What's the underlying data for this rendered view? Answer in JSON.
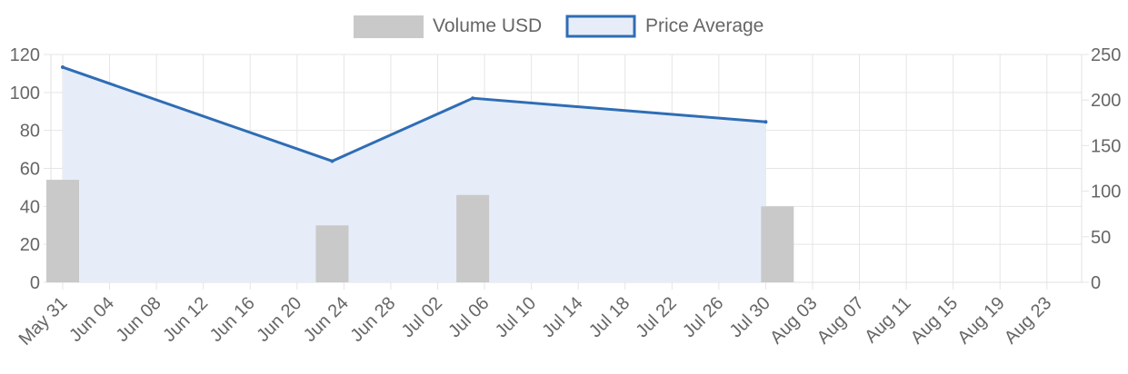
{
  "chart_data": {
    "type": "bar",
    "legend_position": "top-center",
    "grid": true,
    "x_tick_labels": [
      "May 31",
      "Jun 04",
      "Jun 08",
      "Jun 12",
      "Jun 16",
      "Jun 20",
      "Jun 24",
      "Jun 28",
      "Jul 02",
      "Jul 06",
      "Jul 10",
      "Jul 14",
      "Jul 18",
      "Jul 22",
      "Jul 26",
      "Jul 30",
      "Aug 03",
      "Aug 07",
      "Aug 11",
      "Aug 15",
      "Aug 19",
      "Aug 23"
    ],
    "y_left": {
      "min": 0,
      "max": 120,
      "ticks": [
        0,
        20,
        40,
        60,
        80,
        100,
        120
      ]
    },
    "y_right": {
      "min": 0,
      "max": 250,
      "ticks": [
        0,
        50,
        100,
        150,
        200,
        250
      ]
    },
    "series": [
      {
        "name": "Volume USD",
        "type": "bar",
        "axis": "left",
        "color": "#c9c9c9",
        "points": [
          {
            "x": "May 31",
            "y": 54
          },
          {
            "x": "Jun 23",
            "y": 30
          },
          {
            "x": "Jul 05",
            "y": 46
          },
          {
            "x": "Jul 31",
            "y": 40
          }
        ]
      },
      {
        "name": "Price Average",
        "type": "area-line",
        "axis": "right",
        "color": "#2f6db5",
        "fill": "#e6edf8",
        "points": [
          {
            "x": "May 31",
            "y": 236
          },
          {
            "x": "Jun 23",
            "y": 133
          },
          {
            "x": "Jul 05",
            "y": 202
          },
          {
            "x": "Jul 30",
            "y": 176
          }
        ]
      }
    ]
  }
}
